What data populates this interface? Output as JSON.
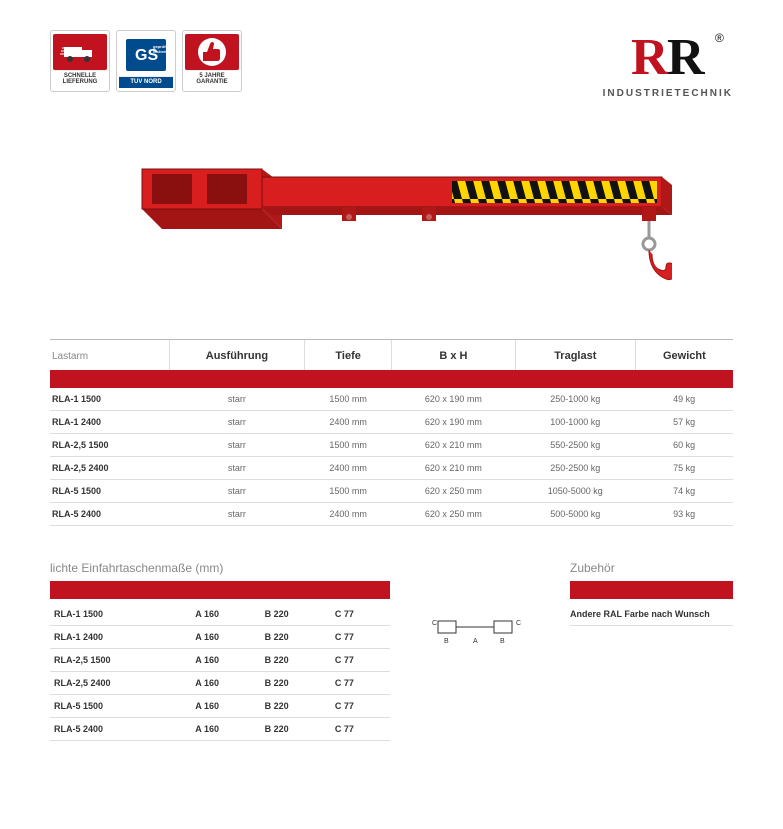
{
  "badges": [
    {
      "label": "SCHNELLE LIEFERUNG",
      "bg": "#c1121f"
    },
    {
      "label": "TUV NORD",
      "sub": "GS",
      "bg": "#ffffff"
    },
    {
      "label": "5 JAHRE GARANTIE",
      "bg": "#c1121f"
    }
  ],
  "logo": {
    "text": "INDUSTRIETECHNIK",
    "register": "®"
  },
  "colors": {
    "brand_red": "#c1121f",
    "hazard_yellow": "#ffd500",
    "steel": "#888"
  },
  "product_image": {
    "type": "lastarm",
    "color": "#d81e1e"
  },
  "spec_table": {
    "label": "Lastarm",
    "columns": [
      "Ausführung",
      "Tiefe",
      "B x H",
      "Traglast",
      "Gewicht"
    ],
    "rows": [
      {
        "model": "RLA-1 1500",
        "ausf": "starr",
        "tiefe": "1500 mm",
        "bxh": "620 x 190 mm",
        "trag": "250-1000 kg",
        "gew": "49 kg"
      },
      {
        "model": "RLA-1 2400",
        "ausf": "starr",
        "tiefe": "2400 mm",
        "bxh": "620 x 190 mm",
        "trag": "100-1000 kg",
        "gew": "57 kg"
      },
      {
        "model": "RLA-2,5 1500",
        "ausf": "starr",
        "tiefe": "1500 mm",
        "bxh": "620 x 210 mm",
        "trag": "550-2500 kg",
        "gew": "60 kg"
      },
      {
        "model": "RLA-2,5 2400",
        "ausf": "starr",
        "tiefe": "2400 mm",
        "bxh": "620 x 210 mm",
        "trag": "250-2500 kg",
        "gew": "75 kg"
      },
      {
        "model": "RLA-5 1500",
        "ausf": "starr",
        "tiefe": "1500 mm",
        "bxh": "620 x 250 mm",
        "trag": "1050-5000 kg",
        "gew": "74 kg"
      },
      {
        "model": "RLA-5 2400",
        "ausf": "starr",
        "tiefe": "2400 mm",
        "bxh": "620 x 250 mm",
        "trag": "500-5000 kg",
        "gew": "93 kg"
      }
    ]
  },
  "pocket_table": {
    "title": "lichte Einfahrtaschenmaße (mm)",
    "rows": [
      {
        "model": "RLA-1 1500",
        "a": "A 160",
        "b": "B 220",
        "c": "C 77"
      },
      {
        "model": "RLA-1 2400",
        "a": "A 160",
        "b": "B 220",
        "c": "C 77"
      },
      {
        "model": "RLA-2,5 1500",
        "a": "A 160",
        "b": "B 220",
        "c": "C 77"
      },
      {
        "model": "RLA-2,5 2400",
        "a": "A 160",
        "b": "B 220",
        "c": "C 77"
      },
      {
        "model": "RLA-5 1500",
        "a": "A 160",
        "b": "B 220",
        "c": "C 77"
      },
      {
        "model": "RLA-5 2400",
        "a": "A 160",
        "b": "B 220",
        "c": "C 77"
      }
    ]
  },
  "diagram": {
    "labels": {
      "a": "A",
      "b": "B",
      "c": "C"
    }
  },
  "accessories": {
    "title": "Zubehör",
    "text": "Andere RAL Farbe nach Wunsch"
  }
}
